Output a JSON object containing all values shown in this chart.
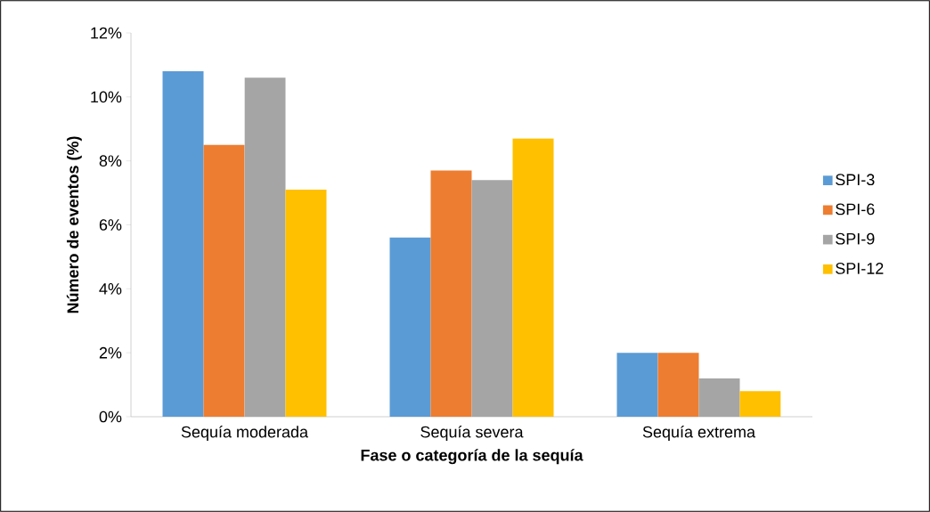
{
  "chart_data": {
    "type": "bar",
    "xlabel": "Fase o categoría de la sequía",
    "ylabel": "Número de eventos (%)",
    "categories": [
      "Sequía moderada",
      "Sequía severa",
      "Sequía extrema"
    ],
    "series": [
      {
        "name": "SPI-3",
        "color": "#5b9bd5",
        "values": [
          10.8,
          5.6,
          2.0
        ]
      },
      {
        "name": "SPI-6",
        "color": "#ed7d31",
        "values": [
          8.5,
          7.7,
          2.0
        ]
      },
      {
        "name": "SPI-9",
        "color": "#a5a5a5",
        "values": [
          10.6,
          7.4,
          1.2
        ]
      },
      {
        "name": "SPI-12",
        "color": "#ffc000",
        "values": [
          7.1,
          8.7,
          0.8
        ]
      }
    ],
    "ylim": [
      0,
      12
    ],
    "yticks": [
      {
        "value": 0,
        "label": "0%"
      },
      {
        "value": 2,
        "label": "2%"
      },
      {
        "value": 4,
        "label": "4%"
      },
      {
        "value": 6,
        "label": "6%"
      },
      {
        "value": 8,
        "label": "8%"
      },
      {
        "value": 10,
        "label": "10%"
      },
      {
        "value": 12,
        "label": "12%"
      }
    ],
    "grid": false,
    "legend": "right"
  }
}
